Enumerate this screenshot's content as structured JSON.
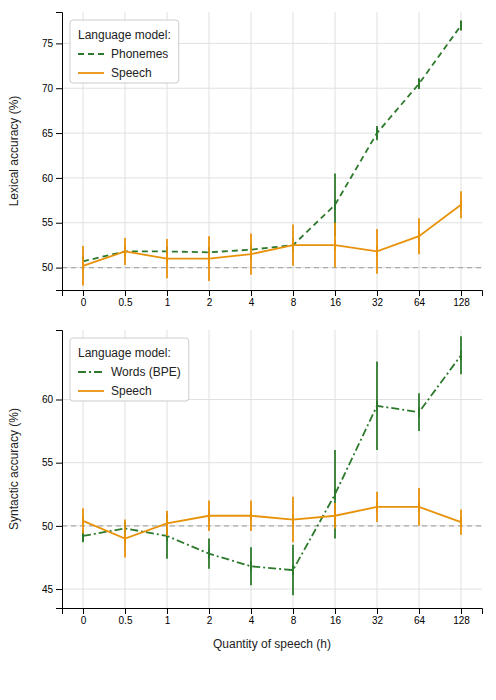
{
  "chart_data": [
    {
      "type": "line",
      "ylabel": "Lexical accuracy (%)",
      "categories": [
        "0",
        "0.5",
        "1",
        "2",
        "4",
        "8",
        "16",
        "32",
        "64",
        "128"
      ],
      "series": [
        {
          "name": "Phonemes",
          "color": "#2d7a2d",
          "line_style": "dashed",
          "marker": "vline",
          "values": [
            50.7,
            51.8,
            51.8,
            51.7,
            52.0,
            52.5,
            57.0,
            65.0,
            70.5,
            77.0
          ],
          "errors": [
            0.5,
            0.5,
            0.5,
            0.5,
            0.5,
            0.8,
            3.5,
            0.8,
            0.6,
            0.5
          ]
        },
        {
          "name": "Speech",
          "color": "#e8920a",
          "line_style": "solid",
          "marker": "vline",
          "values": [
            50.2,
            51.8,
            51.0,
            51.0,
            51.5,
            52.5,
            52.5,
            51.8,
            53.5,
            57.0
          ],
          "errors": [
            2.2,
            1.5,
            2.2,
            2.5,
            2.3,
            2.3,
            2.5,
            2.5,
            2.0,
            1.5
          ]
        }
      ],
      "ylim": [
        47.5,
        78.5
      ],
      "yticks": [
        50,
        55,
        60,
        65,
        70,
        75
      ],
      "reference_line": {
        "value": 50,
        "color": "#aaaaaa"
      },
      "grid": true,
      "legend": "upper left",
      "legend_title": "Language model:"
    },
    {
      "type": "line",
      "ylabel": "Syntactic accuracy (%)",
      "xlabel": "Quantity of speech (h)",
      "categories": [
        "0",
        "0.5",
        "1",
        "2",
        "4",
        "8",
        "16",
        "32",
        "64",
        "128"
      ],
      "series": [
        {
          "name": "Words (BPE)",
          "color": "#2d7a2d",
          "line_style": "dashdot",
          "marker": "vline",
          "values": [
            49.2,
            49.8,
            49.2,
            47.8,
            46.8,
            46.5,
            52.5,
            59.5,
            59.0,
            63.5
          ],
          "errors": [
            0.5,
            0.5,
            1.8,
            1.2,
            1.5,
            2.0,
            3.5,
            3.5,
            1.5,
            1.5
          ]
        },
        {
          "name": "Speech",
          "color": "#e8920a",
          "line_style": "solid",
          "marker": "vline",
          "values": [
            50.4,
            49.0,
            50.2,
            50.8,
            50.8,
            50.5,
            50.8,
            51.5,
            51.5,
            50.3
          ],
          "errors": [
            1.0,
            1.5,
            1.0,
            1.2,
            1.2,
            1.8,
            1.0,
            1.2,
            1.5,
            1.0
          ]
        }
      ],
      "ylim": [
        43.5,
        65.5
      ],
      "yticks": [
        45,
        50,
        55,
        60
      ],
      "reference_line": {
        "value": 50,
        "color": "#aaaaaa"
      },
      "grid": true,
      "legend": "upper left",
      "legend_title": "Language model:"
    }
  ]
}
